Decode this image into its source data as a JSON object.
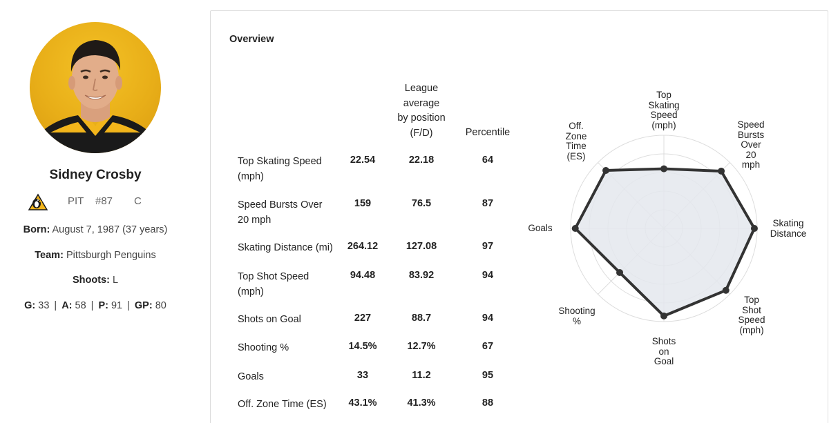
{
  "player": {
    "name": "Sidney Crosby",
    "team_abbr": "PIT",
    "number": "#87",
    "position": "C",
    "born_label": "Born:",
    "born_value": "August 7, 1987 (37 years)",
    "team_label": "Team:",
    "team_value": "Pittsburgh Penguins",
    "shoots_label": "Shoots:",
    "shoots_value": "L",
    "stats": {
      "g_label": "G:",
      "g_value": "33",
      "a_label": "A:",
      "a_value": "58",
      "p_label": "P:",
      "p_value": "91",
      "gp_label": "GP:",
      "gp_value": "80"
    }
  },
  "overview": {
    "title": "Overview",
    "columns": {
      "league_avg": [
        "League",
        "average",
        "by position",
        "(F/D)"
      ],
      "percentile": "Percentile"
    },
    "rows": [
      {
        "metric": "Top Skating Speed (mph)",
        "value": "22.54",
        "league_avg": "22.18",
        "percentile": "64"
      },
      {
        "metric": "Speed Bursts Over 20 mph",
        "value": "159",
        "league_avg": "76.5",
        "percentile": "87"
      },
      {
        "metric": "Skating Distance (mi)",
        "value": "264.12",
        "league_avg": "127.08",
        "percentile": "97"
      },
      {
        "metric": "Top Shot Speed (mph)",
        "value": "94.48",
        "league_avg": "83.92",
        "percentile": "94"
      },
      {
        "metric": "Shots on Goal",
        "value": "227",
        "league_avg": "88.7",
        "percentile": "94"
      },
      {
        "metric": "Shooting %",
        "value": "14.5%",
        "league_avg": "12.7%",
        "percentile": "67"
      },
      {
        "metric": "Goals",
        "value": "33",
        "league_avg": "11.2",
        "percentile": "95"
      },
      {
        "metric": "Off. Zone Time (ES)",
        "value": "43.1%",
        "league_avg": "41.3%",
        "percentile": "88"
      }
    ]
  },
  "radar": {
    "axes": [
      {
        "label": [
          "Top",
          "Skating",
          "Speed",
          "(mph)"
        ],
        "percentile": 64
      },
      {
        "label": [
          "Speed",
          "Bursts",
          "Over",
          "20",
          "mph"
        ],
        "percentile": 87
      },
      {
        "label": [
          "Skating",
          "Distance"
        ],
        "percentile": 97
      },
      {
        "label": [
          "Top",
          "Shot",
          "Speed",
          "(mph)"
        ],
        "percentile": 94
      },
      {
        "label": [
          "Shots",
          "on",
          "Goal"
        ],
        "percentile": 94
      },
      {
        "label": [
          "Shooting",
          "%"
        ],
        "percentile": 67
      },
      {
        "label": [
          "Goals"
        ],
        "percentile": 95
      },
      {
        "label": [
          "Off.",
          "Zone",
          "Time",
          "(ES)"
        ],
        "percentile": 88
      }
    ],
    "max": 100,
    "fill_color": "#e4e8ed",
    "line_color": "#333333"
  }
}
